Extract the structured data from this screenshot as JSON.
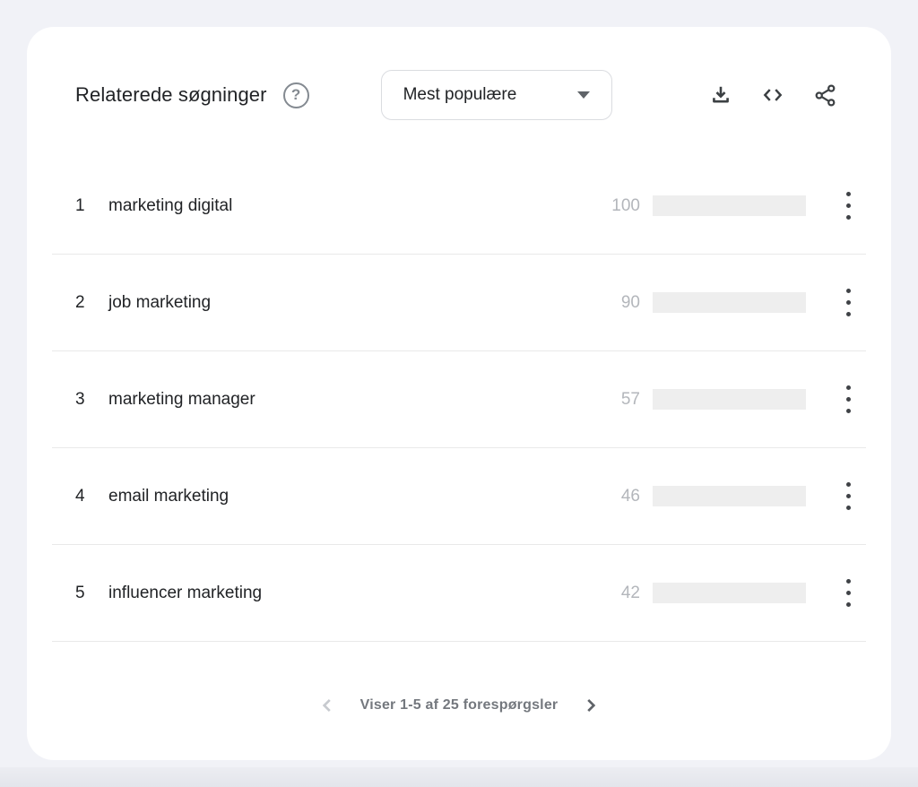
{
  "colors": {
    "page_bg": "#f1f2f7",
    "card_bg": "#ffffff",
    "bar_fill": "#d26b5f",
    "bar_track": "#eeeeee",
    "divider": "#e9e9e9",
    "text_primary": "#212326",
    "text_value": "#b3b6bb",
    "icon": "#3c4043",
    "footer_text": "#74787e"
  },
  "header": {
    "title": "Relaterede søgninger",
    "help_icon": "question-mark-circle",
    "sort_dropdown": {
      "selected": "Mest populære"
    },
    "actions": [
      {
        "icon": "download-icon"
      },
      {
        "icon": "embed-code-icon"
      },
      {
        "icon": "share-icon"
      }
    ]
  },
  "rows": [
    {
      "rank": "1",
      "label": "marketing digital",
      "value": 100
    },
    {
      "rank": "2",
      "label": "job marketing",
      "value": 90
    },
    {
      "rank": "3",
      "label": "marketing manager",
      "value": 57
    },
    {
      "rank": "4",
      "label": "email marketing",
      "value": 46
    },
    {
      "rank": "5",
      "label": "influencer marketing",
      "value": 42
    }
  ],
  "pagination": {
    "label": "Viser 1-5 af 25 forespørgsler",
    "prev_enabled": false,
    "next_enabled": true
  },
  "chart_data": {
    "type": "bar",
    "categories": [
      "marketing digital",
      "job marketing",
      "marketing manager",
      "email marketing",
      "influencer marketing"
    ],
    "values": [
      100,
      90,
      57,
      46,
      42
    ],
    "title": "Relaterede søgninger",
    "xlabel": "",
    "ylabel": "",
    "xlim": [
      0,
      100
    ],
    "legend": false,
    "grid": false,
    "bar_color": "#d26b5f"
  }
}
